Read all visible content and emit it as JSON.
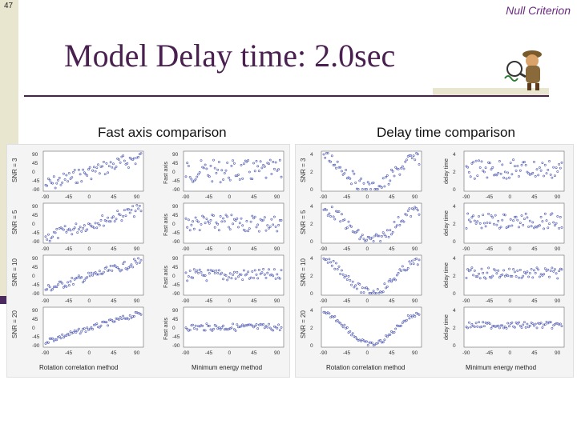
{
  "slide": {
    "number": "47",
    "header_right": "Null Criterion",
    "title": "Model Delay time: 2.0sec"
  },
  "captions": {
    "left": "Fast axis comparison",
    "right": "Delay time comparison"
  },
  "figures": {
    "fast_axis": {
      "row_labels": [
        "SNR = 3",
        "SNR = 5",
        "SNR = 10",
        "SNR = 20"
      ],
      "y_label": "Fast axis",
      "y_ticks": [
        "90",
        "45",
        "0",
        "-45",
        "-90"
      ],
      "x_ticks": [
        "-90",
        "-45",
        "0",
        "45",
        "90"
      ],
      "x_label_left": "Rotation correlation method",
      "x_label_right": "Minimum energy method"
    },
    "delay_time": {
      "row_labels": [
        "SNR = 3",
        "SNR = 5",
        "SNR = 10",
        "SNR = 20"
      ],
      "y_label": "delay time",
      "y_ticks": [
        "4",
        "2",
        "0"
      ],
      "x_ticks": [
        "-90",
        "-45",
        "0",
        "45",
        "90"
      ],
      "x_label_left": "Rotation correlation method",
      "x_label_right": "Minimum energy method"
    }
  }
}
